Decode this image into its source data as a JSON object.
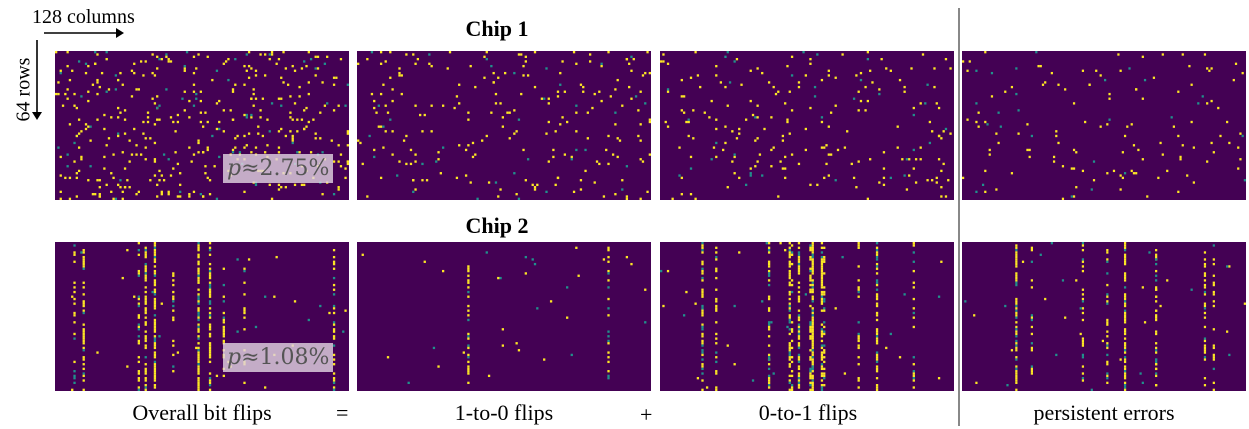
{
  "axis": {
    "columns_label": "128 columns",
    "rows_label": "64 rows"
  },
  "chips": [
    {
      "title": "Chip 1",
      "p_symbol": "p",
      "p_value": "≈2.75%",
      "pattern": "scatter"
    },
    {
      "title": "Chip 2",
      "p_symbol": "p",
      "p_value": "≈1.08%",
      "pattern": "columns"
    }
  ],
  "captions": [
    "Overall bit flips",
    "1-to-0 flips",
    "0-to-1 flips",
    "persistent errors"
  ],
  "operators": [
    "=",
    "+"
  ],
  "colors": {
    "background": "#440154",
    "flip": "#fde725",
    "partial": "#21918c",
    "divider": "#888888"
  }
}
